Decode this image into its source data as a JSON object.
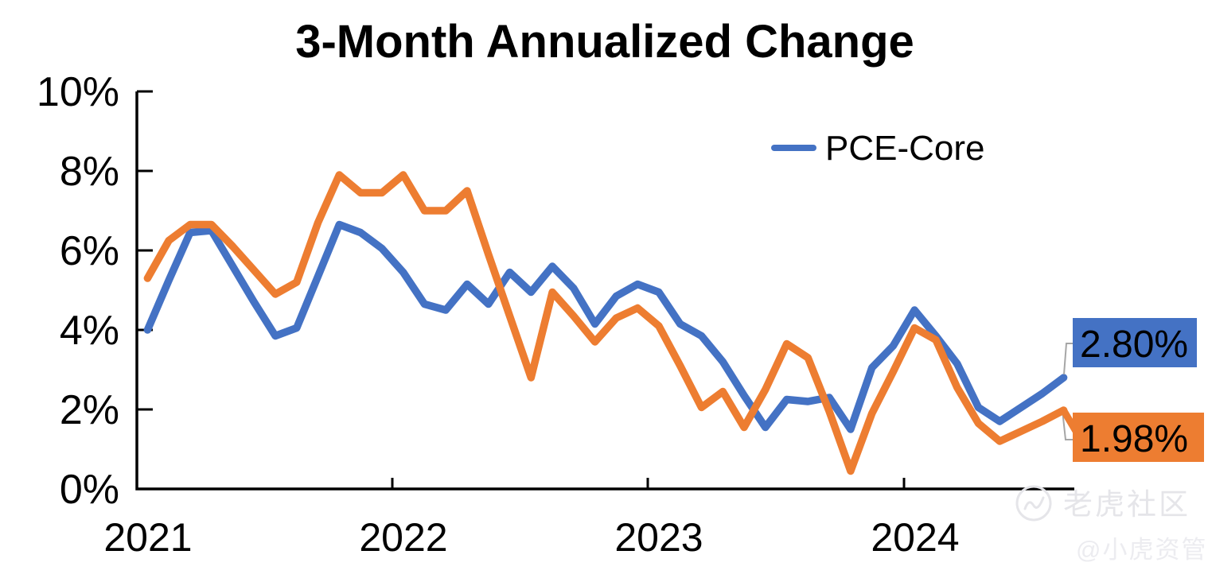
{
  "title": "3-Month Annualized Change",
  "legend": {
    "items": [
      {
        "label": "PCE-Core",
        "color": "#4472C4"
      }
    ]
  },
  "y_axis": {
    "tick_labels": [
      "10%",
      "8%",
      "6%",
      "4%",
      "2%",
      "0%"
    ],
    "min": 0,
    "max": 10
  },
  "x_axis": {
    "year_labels": [
      "2021",
      "2022",
      "2023",
      "2024"
    ]
  },
  "end_labels": [
    {
      "text": "2.80%",
      "bg": "#4472C4"
    },
    {
      "text": "1.98%",
      "bg": "#ED7D31"
    }
  ],
  "watermark": {
    "brand": "老虎社区",
    "handle": "@小虎资管"
  },
  "colors": {
    "pce_core": "#4472C4",
    "second_series": "#ED7D31",
    "axis": "#000000",
    "connector": "#a6a6a6"
  },
  "chart_data": {
    "type": "line",
    "title": "3-Month Annualized Change",
    "ylabel": "",
    "xlabel": "",
    "ylim": [
      0,
      10
    ],
    "grid": false,
    "legend_position": "top-right",
    "x": [
      "2021-01",
      "2021-02",
      "2021-03",
      "2021-04",
      "2021-05",
      "2021-06",
      "2021-07",
      "2021-08",
      "2021-09",
      "2021-10",
      "2021-11",
      "2021-12",
      "2022-01",
      "2022-02",
      "2022-03",
      "2022-04",
      "2022-05",
      "2022-06",
      "2022-07",
      "2022-08",
      "2022-09",
      "2022-10",
      "2022-11",
      "2022-12",
      "2023-01",
      "2023-02",
      "2023-03",
      "2023-04",
      "2023-05",
      "2023-06",
      "2023-07",
      "2023-08",
      "2023-09",
      "2023-10",
      "2023-11",
      "2023-12",
      "2024-01",
      "2024-02",
      "2024-03",
      "2024-04",
      "2024-05",
      "2024-06",
      "2024-07",
      "2024-08"
    ],
    "series": [
      {
        "name": "PCE-Core",
        "color": "#4472C4",
        "end_label": "2.80%",
        "values": [
          4.0,
          5.25,
          6.45,
          6.5,
          5.6,
          4.7,
          3.85,
          4.05,
          5.35,
          6.65,
          6.45,
          6.05,
          5.45,
          4.65,
          4.5,
          5.15,
          4.65,
          5.45,
          4.95,
          5.6,
          5.05,
          4.15,
          4.85,
          5.15,
          4.95,
          4.15,
          3.85,
          3.2,
          2.35,
          1.55,
          2.25,
          2.2,
          2.3,
          1.5,
          3.05,
          3.6,
          4.5,
          3.85,
          3.15,
          2.05,
          1.7,
          2.05,
          2.4,
          2.8
        ]
      },
      {
        "name": "",
        "color": "#ED7D31",
        "end_label": "1.98%",
        "values": [
          5.3,
          6.25,
          6.65,
          6.65,
          6.1,
          5.5,
          4.9,
          5.2,
          6.7,
          7.9,
          7.45,
          7.45,
          7.9,
          7.0,
          7.0,
          7.5,
          5.9,
          4.35,
          2.8,
          4.95,
          4.35,
          3.7,
          4.3,
          4.55,
          4.1,
          3.1,
          2.05,
          2.45,
          1.55,
          2.5,
          3.65,
          3.3,
          1.95,
          0.45,
          1.9,
          2.95,
          4.05,
          3.75,
          2.55,
          1.65,
          1.2,
          1.45,
          1.7,
          1.98
        ]
      }
    ]
  }
}
